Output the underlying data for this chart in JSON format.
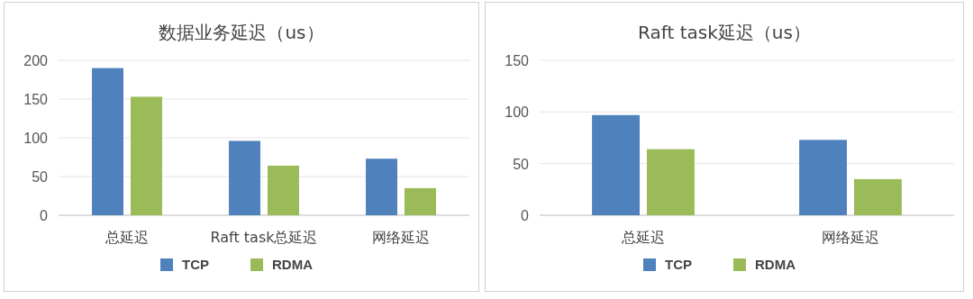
{
  "chart_data": [
    {
      "type": "bar",
      "title": "数据业务延迟（us）",
      "categories": [
        "总延迟",
        "Raft task总延迟",
        "网络延迟"
      ],
      "series": [
        {
          "name": "TCP",
          "color": "#4f81bd",
          "values": [
            190,
            96,
            73
          ]
        },
        {
          "name": "RDMA",
          "color": "#9bbb59",
          "values": [
            153,
            64,
            35
          ]
        }
      ],
      "ylim": [
        0,
        200
      ],
      "yticks": [
        0,
        50,
        100,
        150,
        200
      ],
      "grid": "y",
      "legend": "bottom"
    },
    {
      "type": "bar",
      "title": "Raft task延迟（us）",
      "categories": [
        "总延迟",
        "网络延迟"
      ],
      "series": [
        {
          "name": "TCP",
          "color": "#4f81bd",
          "values": [
            97,
            73
          ]
        },
        {
          "name": "RDMA",
          "color": "#9bbb59",
          "values": [
            64,
            35
          ]
        }
      ],
      "ylim": [
        0,
        150
      ],
      "yticks": [
        0,
        50,
        100,
        150
      ],
      "grid": "y",
      "legend": "bottom"
    }
  ]
}
